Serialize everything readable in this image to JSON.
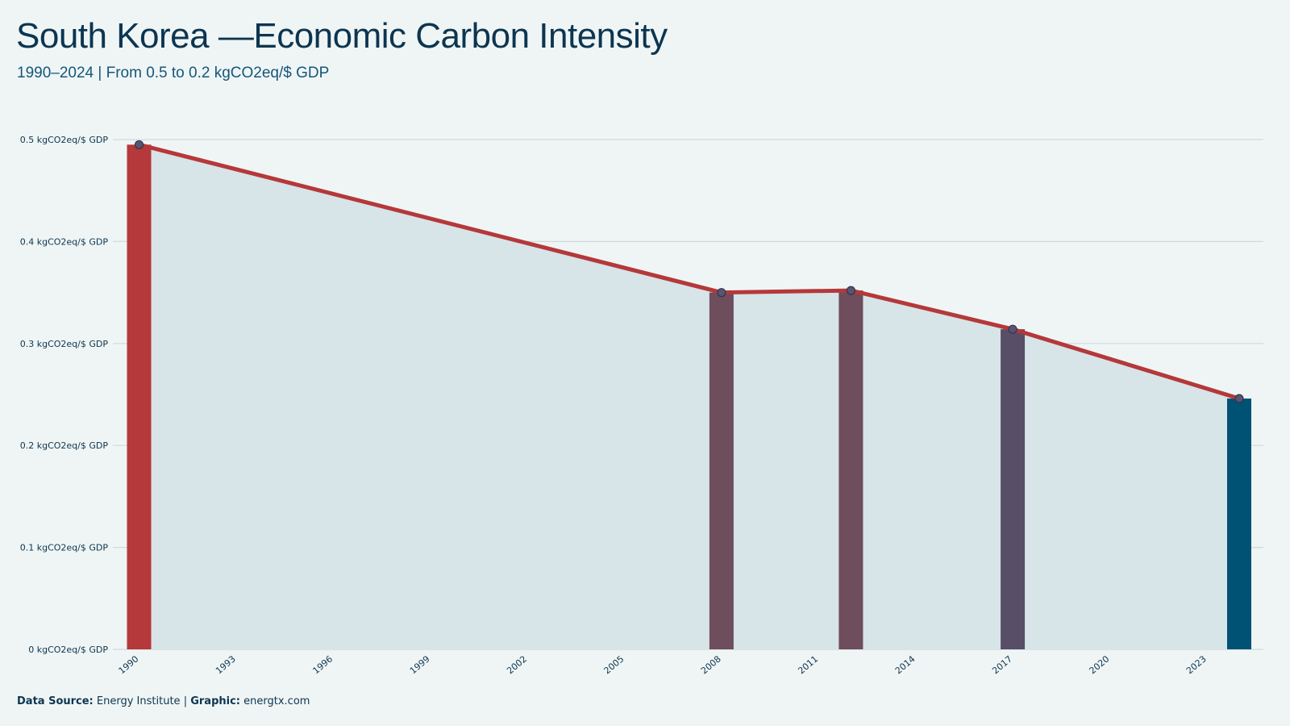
{
  "header": {
    "title": "South Korea —Economic Carbon Intensity",
    "subtitle": "1990–2024 | From 0.5 to 0.2 kgCO2eq/$ GDP"
  },
  "footer": {
    "source_label": "Data Source:",
    "source_value": "Energy Institute",
    "separator": "|",
    "graphic_label": "Graphic:",
    "graphic_value": "energtx.com"
  },
  "colors": {
    "background": "#eff5f5",
    "line": "#b5383a",
    "area": "#d7e4e8",
    "grid": "#cfdadd",
    "bar_1990": "#b5383a",
    "bar_2008": "#6e4d5c",
    "bar_2012": "#6e4d5c",
    "bar_2017": "#584e68",
    "bar_2024": "#005274"
  },
  "chart_data": {
    "type": "line",
    "x": [
      1990,
      2008,
      2012,
      2017,
      2024
    ],
    "values": [
      0.495,
      0.35,
      0.352,
      0.314,
      0.246
    ],
    "highlight_bars": [
      1990,
      2008,
      2012,
      2017,
      2024
    ],
    "area_fill": true,
    "xlim": [
      1990,
      2024
    ],
    "ylim": [
      0,
      0.5
    ],
    "y_ticks": [
      0,
      0.1,
      0.2,
      0.3,
      0.4,
      0.5
    ],
    "y_tick_labels": [
      "0 kgCO2eq/$ GDP",
      "0.1 kgCO2eq/$ GDP",
      "0.2 kgCO2eq/$ GDP",
      "0.3 kgCO2eq/$ GDP",
      "0.4 kgCO2eq/$ GDP",
      "0.5 kgCO2eq/$ GDP"
    ],
    "x_ticks": [
      1990,
      1993,
      1996,
      1999,
      2002,
      2005,
      2008,
      2011,
      2014,
      2017,
      2020,
      2023
    ],
    "xlabel": "",
    "ylabel": "",
    "grid": true,
    "legend": "none"
  }
}
